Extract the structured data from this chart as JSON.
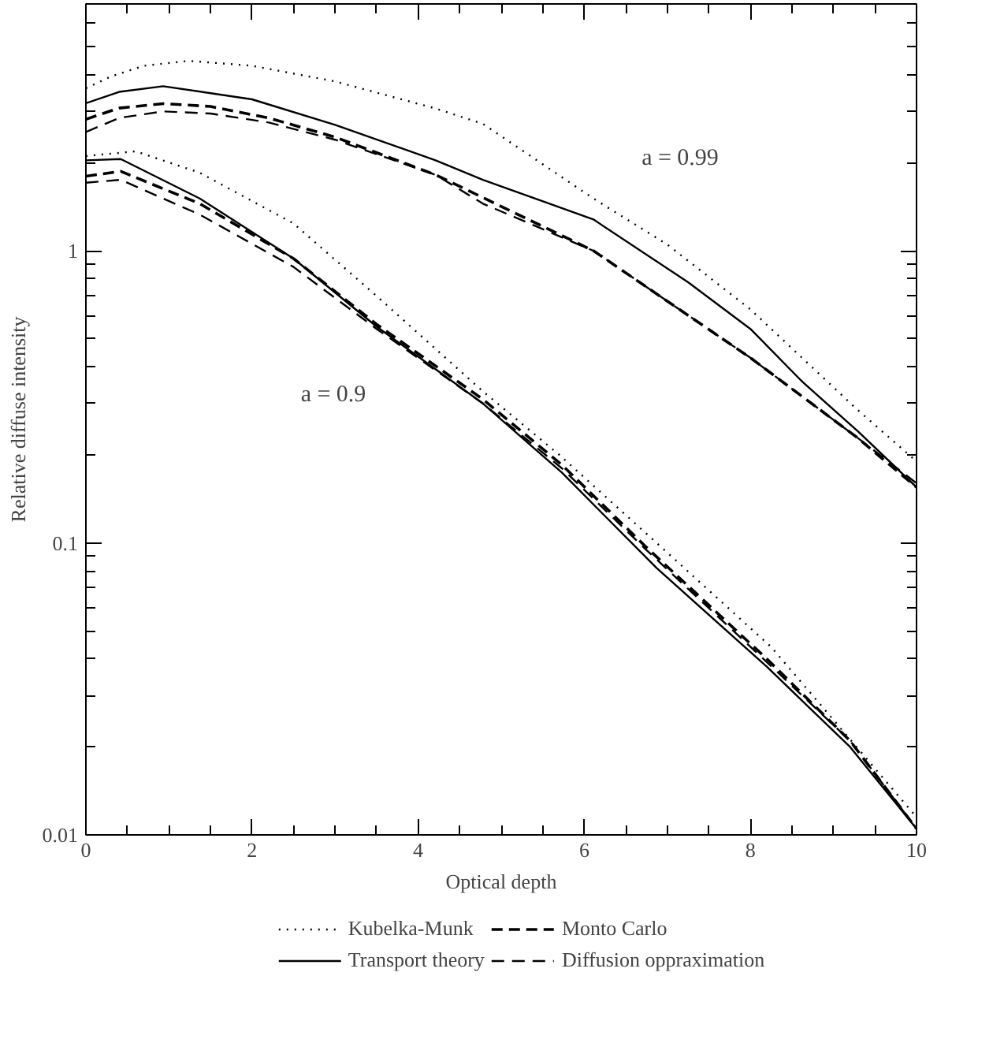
{
  "chart_data": {
    "type": "line",
    "xlabel": "Optical depth",
    "ylabel": "Relative diffuse intensity",
    "log": "y",
    "xlim": [
      0,
      10
    ],
    "ylim": [
      0.01,
      7
    ],
    "xticks": [
      0,
      2,
      4,
      6,
      8,
      10
    ],
    "yticks": [
      0.01,
      0.1,
      1
    ],
    "legend": "bottom",
    "grid": false,
    "annotations": [
      "a = 0.99",
      "a = 0.9"
    ],
    "series": [
      {
        "name": "Kubelka-Munk",
        "color": "#000000",
        "line_style": "dotted",
        "x": [
          0,
          0.3,
          0.7,
          1.24,
          2,
          3,
          4.21,
          4.78,
          6.11,
          7,
          8,
          9.28,
          10
        ],
        "values": [
          3.6,
          3.95,
          4.3,
          4.47,
          4.3,
          3.8,
          3.07,
          2.72,
          1.51,
          1.05,
          0.63,
          0.287,
          0.19
        ]
      },
      {
        "name": "Transport theory",
        "color": "#000000",
        "line_style": "solid",
        "x": [
          0,
          0.4,
          0.93,
          2,
          3,
          4.21,
          4.78,
          6.11,
          7.25,
          8,
          8.63,
          9.3,
          10
        ],
        "values": [
          3.2,
          3.5,
          3.66,
          3.3,
          2.7,
          2.04,
          1.75,
          1.28,
          0.78,
          0.54,
          0.355,
          0.24,
          0.155
        ]
      },
      {
        "name": "Monto Carlo",
        "color": "#000000",
        "line_style": "dashed",
        "x": [
          0,
          0.4,
          0.93,
          1.5,
          2.2,
          3,
          4.21,
          6.11,
          8,
          9.28,
          10
        ],
        "values": [
          2.82,
          3.08,
          3.19,
          3.12,
          2.85,
          2.45,
          1.82,
          1.0,
          0.43,
          0.23,
          0.155
        ]
      },
      {
        "name": "Diffusion oppraximation",
        "color": "#000000",
        "line_style": "dashed",
        "x": [
          0,
          0.4,
          0.93,
          1.5,
          2.2,
          3,
          4.21,
          4.78,
          6.11,
          8,
          9.28,
          10
        ],
        "values": [
          2.55,
          2.85,
          3.0,
          2.95,
          2.75,
          2.4,
          1.82,
          1.45,
          1.0,
          0.43,
          0.23,
          0.16
        ]
      },
      {
        "color": "#000000",
        "line_style": "dotted",
        "x": [
          0,
          0.6,
          1.37,
          2.5,
          3.5,
          4.78,
          5.7,
          6.74,
          8.25,
          10
        ],
        "values": [
          2.11,
          2.19,
          1.85,
          1.24,
          0.7,
          0.33,
          0.2,
          0.108,
          0.044,
          0.0115
        ]
      },
      {
        "color": "#000000",
        "line_style": "solid",
        "x": [
          0,
          0.42,
          1.37,
          2.5,
          3.5,
          4.78,
          5.73,
          6.87,
          8.2,
          9.2,
          10
        ],
        "values": [
          2.04,
          2.06,
          1.51,
          0.94,
          0.55,
          0.3,
          0.174,
          0.082,
          0.0376,
          0.02,
          0.0105
        ]
      },
      {
        "color": "#000000",
        "line_style": "dashed",
        "x": [
          0,
          0.42,
          1.37,
          2.5,
          3.5,
          4.78,
          5.73,
          6.74,
          8.2,
          9.2,
          10
        ],
        "values": [
          1.8,
          1.87,
          1.45,
          0.94,
          0.56,
          0.31,
          0.185,
          0.097,
          0.04,
          0.021,
          0.0105
        ]
      },
      {
        "color": "#000000",
        "line_style": "dashed",
        "x": [
          0,
          0.42,
          1.37,
          2.5,
          3.5,
          4.78,
          5.73,
          6.74,
          8.2,
          9.2,
          10
        ],
        "values": [
          1.71,
          1.75,
          1.33,
          0.88,
          0.54,
          0.3,
          0.18,
          0.095,
          0.039,
          0.021,
          0.0105
        ]
      }
    ]
  }
}
